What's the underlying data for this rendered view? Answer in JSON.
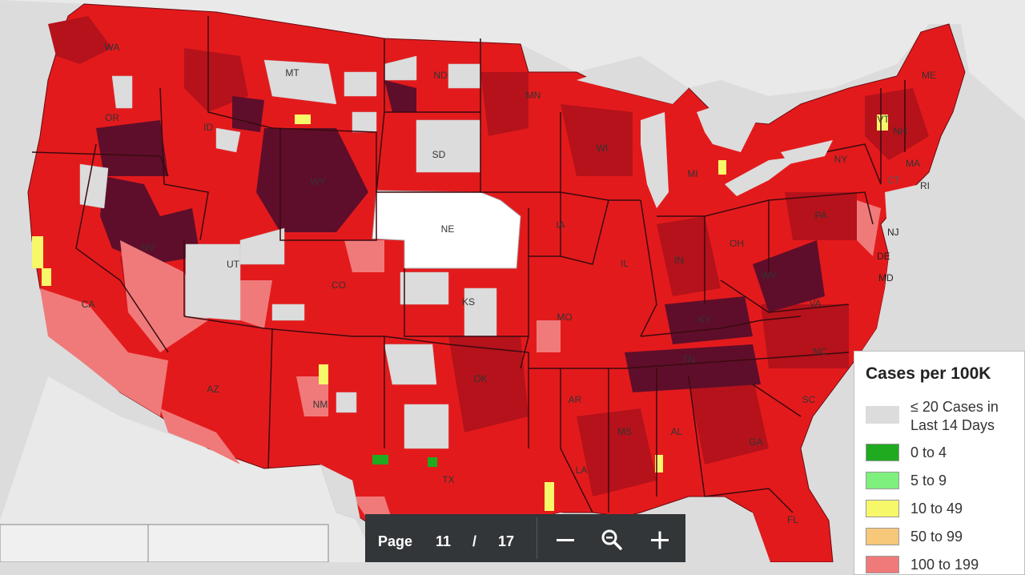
{
  "map": {
    "state_labels": {
      "WA": "WA",
      "OR": "OR",
      "ID": "ID",
      "MT": "MT",
      "ND": "ND",
      "SD": "SD",
      "WY": "WY",
      "NE": "NE",
      "NV": "NV",
      "UT": "UT",
      "CO": "CO",
      "KS": "KS",
      "CA": "CA",
      "AZ": "AZ",
      "NM": "NM",
      "OK": "OK",
      "TX": "TX",
      "MN": "MN",
      "WI": "WI",
      "MI": "MI",
      "IA": "IA",
      "IL": "IL",
      "IN": "IN",
      "OH": "OH",
      "MO": "MO",
      "KY": "KY",
      "TN": "TN",
      "AR": "AR",
      "LA": "LA",
      "MS": "MS",
      "AL": "AL",
      "GA": "GA",
      "FL": "FL",
      "SC": "SC",
      "NC": "NC",
      "VA": "VA",
      "WV": "WV",
      "PA": "PA",
      "NY": "NY",
      "VT": "VT",
      "NH": "NH",
      "ME": "ME",
      "MA": "MA",
      "CT": "CT",
      "RI": "RI",
      "NJ": "NJ",
      "DE": "DE",
      "MD": "MD"
    }
  },
  "legend": {
    "title": "Cases per 100K",
    "items": [
      {
        "label_line1": "≤ 20 Cases in",
        "label_line2": "Last 14 Days",
        "color": "#dcdcdc"
      },
      {
        "label_line1": "0 to 4",
        "color": "#1faa1f"
      },
      {
        "label_line1": "5 to 9",
        "color": "#7ef07e"
      },
      {
        "label_line1": "10 to 49",
        "color": "#f7f76a"
      },
      {
        "label_line1": "50 to 99",
        "color": "#f7c77a"
      },
      {
        "label_line1": "100 to 199",
        "color": "#f07a7a"
      }
    ]
  },
  "toolbar": {
    "page_label": "Page",
    "current_page": "11",
    "separator": "/",
    "total_pages": "17",
    "zoom_out_icon": "minus-icon",
    "zoom_reset_icon": "magnifier-icon",
    "zoom_in_icon": "plus-icon"
  },
  "colors": {
    "ocean": "#dcdcdc",
    "land_outside": "#e9e9e9",
    "red": "#e31a1c",
    "dark_red": "#b5121b",
    "maroon": "#5e0e2a",
    "pink": "#f07a7a",
    "white": "#ffffff",
    "toolbar_bg": "#323639"
  }
}
